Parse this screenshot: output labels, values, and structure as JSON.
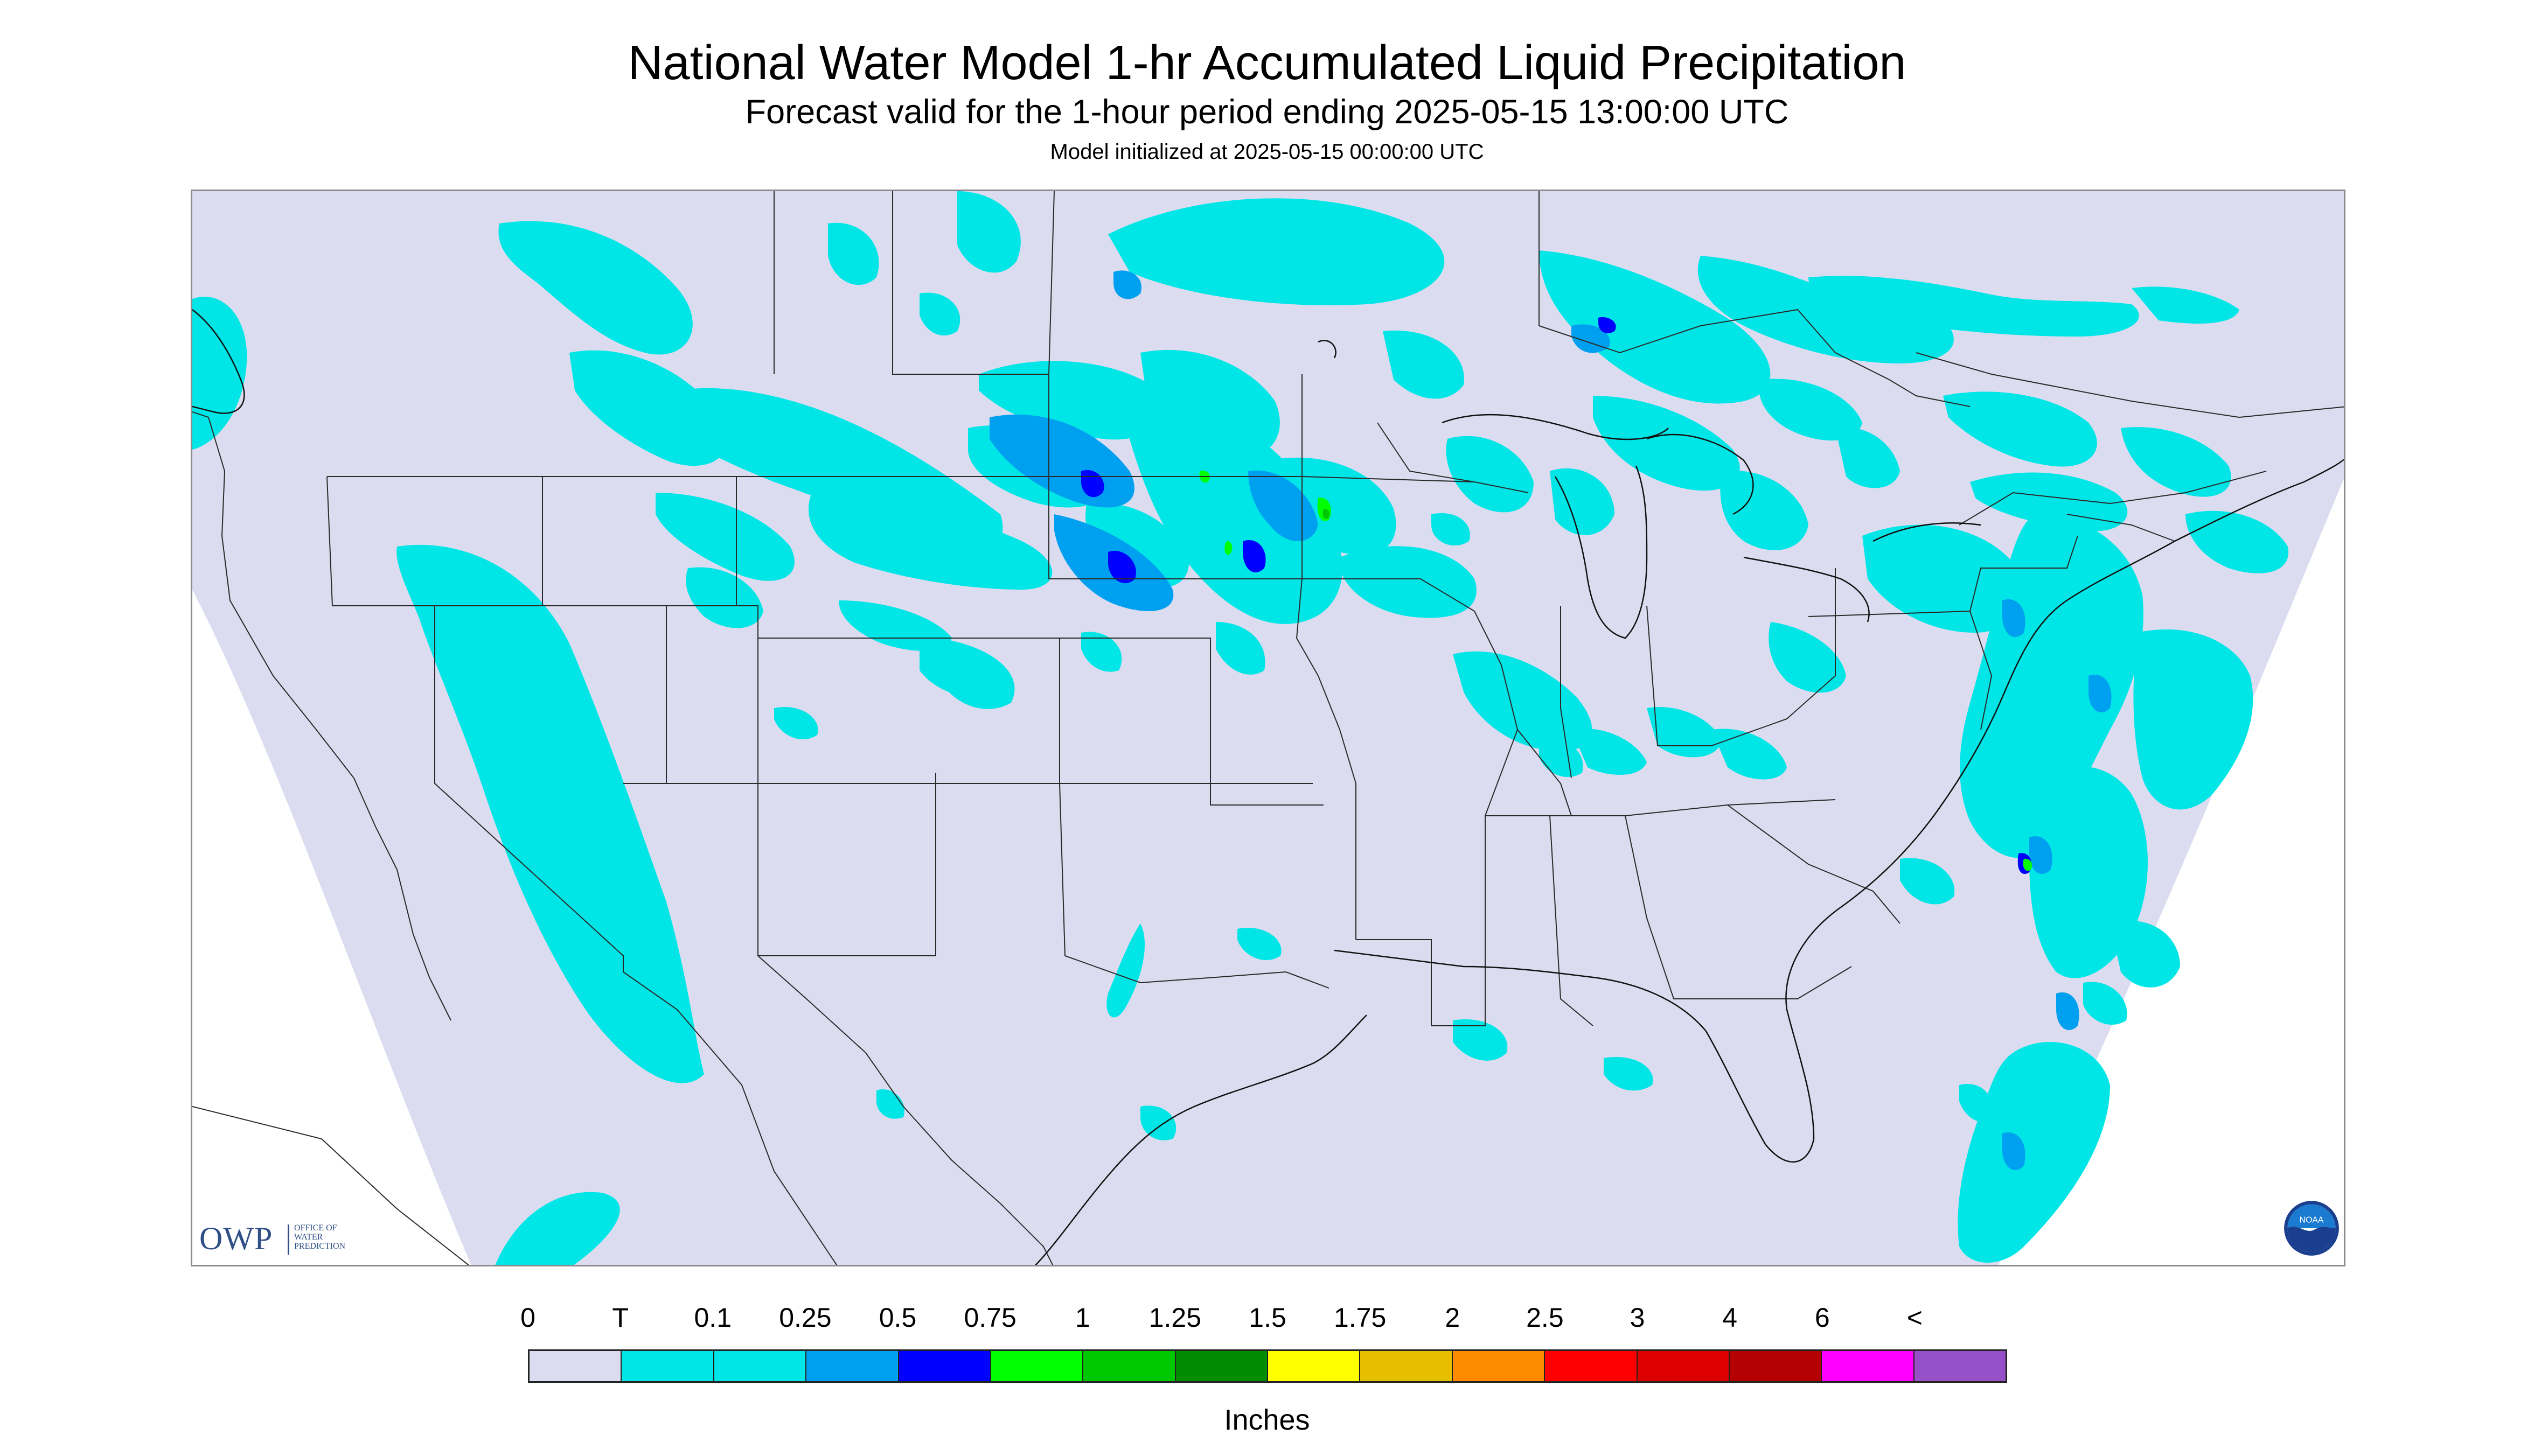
{
  "title": "National Water Model 1-hr Accumulated Liquid Precipitation",
  "subtitle": "Forecast valid for the 1-hour period ending 2025-05-15 13:00:00 UTC",
  "init_line": "Model initialized at 2025-05-15 00:00:00 UTC",
  "units_label": "Inches",
  "logos": {
    "owp_main": "OWP",
    "owp_line1": "OFFICE OF",
    "owp_line2": "WATER",
    "owp_line3": "PREDICTION",
    "noaa_text": "NOAA"
  },
  "colors": {
    "background": "#dcdcf0",
    "borders": "#2a2a2a",
    "water": "#ffffff"
  },
  "legend": [
    {
      "label": "0",
      "color": "#dcdcf0"
    },
    {
      "label": "T",
      "color": "#00e6e6"
    },
    {
      "label": "0.1",
      "color": "#00e6e6"
    },
    {
      "label": "0.25",
      "color": "#00a0f0"
    },
    {
      "label": "0.5",
      "color": "#0000ff"
    },
    {
      "label": "0.75",
      "color": "#00ff00"
    },
    {
      "label": "1",
      "color": "#00c800"
    },
    {
      "label": "1.25",
      "color": "#008c00"
    },
    {
      "label": "1.5",
      "color": "#ffff00"
    },
    {
      "label": "1.75",
      "color": "#e6c000"
    },
    {
      "label": "2",
      "color": "#ff8c00"
    },
    {
      "label": "2.5",
      "color": "#ff0000"
    },
    {
      "label": "3",
      "color": "#dc0000"
    },
    {
      "label": "4",
      "color": "#b40000"
    },
    {
      "label": "6",
      "color": "#ff00ff"
    },
    {
      "label": "<",
      "color": "#9650c8"
    }
  ]
}
